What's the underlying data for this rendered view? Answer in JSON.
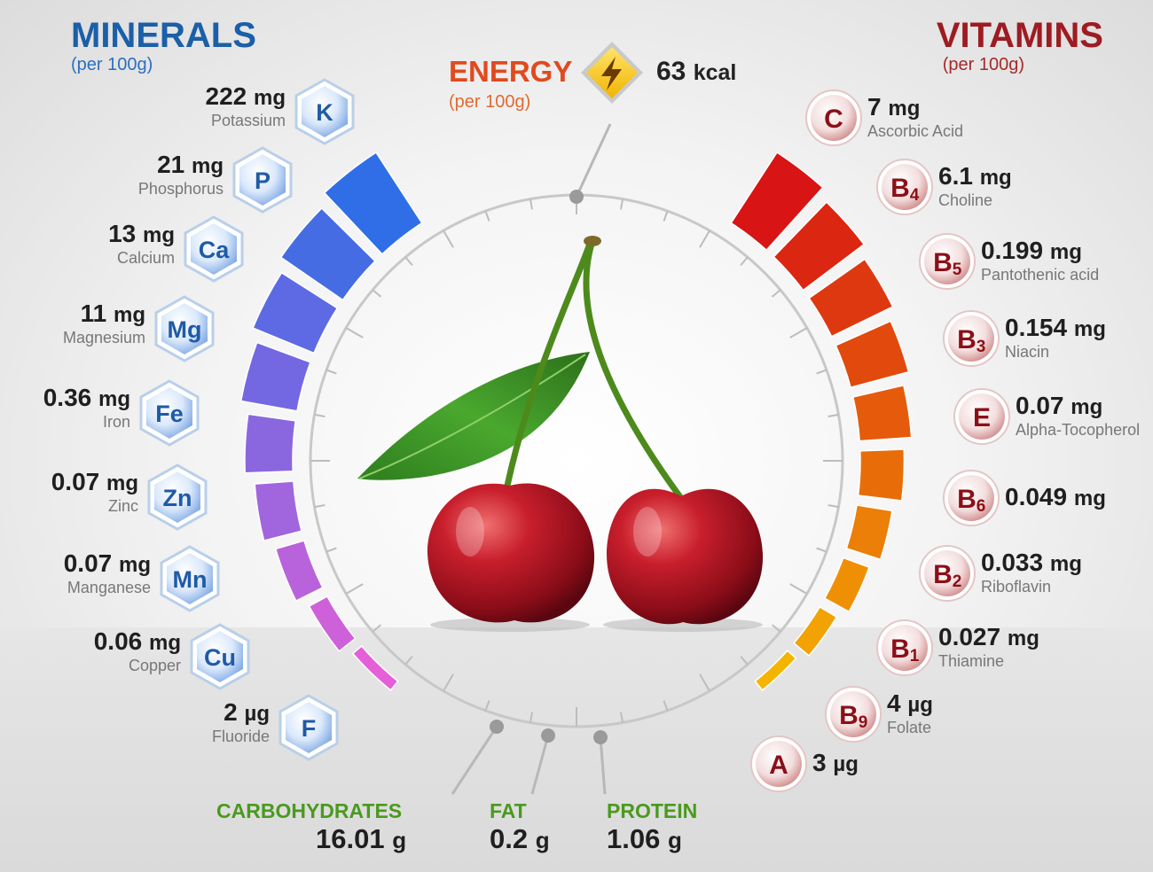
{
  "minerals": {
    "title": "MINERALS",
    "subtitle": "(per 100g)",
    "items": [
      {
        "symbol": "K",
        "amount": "222",
        "unit": "mg",
        "name": "Potassium"
      },
      {
        "symbol": "P",
        "amount": "21",
        "unit": "mg",
        "name": "Phosphorus"
      },
      {
        "symbol": "Ca",
        "amount": "13",
        "unit": "mg",
        "name": "Calcium"
      },
      {
        "symbol": "Mg",
        "amount": "11",
        "unit": "mg",
        "name": "Magnesium"
      },
      {
        "symbol": "Fe",
        "amount": "0.36",
        "unit": "mg",
        "name": "Iron"
      },
      {
        "symbol": "Zn",
        "amount": "0.07",
        "unit": "mg",
        "name": "Zinc"
      },
      {
        "symbol": "Mn",
        "amount": "0.07",
        "unit": "mg",
        "name": "Manganese"
      },
      {
        "symbol": "Cu",
        "amount": "0.06",
        "unit": "mg",
        "name": "Copper"
      },
      {
        "symbol": "F",
        "amount": "2",
        "unit": "µg",
        "name": "Fluoride"
      }
    ]
  },
  "vitamins": {
    "title": "VITAMINS",
    "subtitle": "(per 100g)",
    "items": [
      {
        "symbol": "C",
        "sub": "",
        "amount": "7",
        "unit": "mg",
        "name": "Ascorbic Acid"
      },
      {
        "symbol": "B",
        "sub": "4",
        "amount": "6.1",
        "unit": "mg",
        "name": "Choline"
      },
      {
        "symbol": "B",
        "sub": "5",
        "amount": "0.199",
        "unit": "mg",
        "name": "Pantothenic acid"
      },
      {
        "symbol": "B",
        "sub": "3",
        "amount": "0.154",
        "unit": "mg",
        "name": "Niacin"
      },
      {
        "symbol": "E",
        "sub": "",
        "amount": "0.07",
        "unit": "mg",
        "name": "Alpha-Tocopherol"
      },
      {
        "symbol": "B",
        "sub": "6",
        "amount": "0.049",
        "unit": "mg",
        "name": ""
      },
      {
        "symbol": "B",
        "sub": "2",
        "amount": "0.033",
        "unit": "mg",
        "name": "Riboflavin"
      },
      {
        "symbol": "B",
        "sub": "1",
        "amount": "0.027",
        "unit": "mg",
        "name": "Thiamine"
      },
      {
        "symbol": "B",
        "sub": "9",
        "amount": "4",
        "unit": "µg",
        "name": "Folate"
      },
      {
        "symbol": "A",
        "sub": "",
        "amount": "3",
        "unit": "µg",
        "name": ""
      }
    ]
  },
  "energy": {
    "title": "ENERGY",
    "subtitle": "(per 100g)",
    "value": "63",
    "unit": "kcal",
    "icon": "lightning-icon"
  },
  "macros": [
    {
      "title": "CARBOHYDRATES",
      "amount": "16.01",
      "unit": "g"
    },
    {
      "title": "FAT",
      "amount": "0.2",
      "unit": "g"
    },
    {
      "title": "PROTEIN",
      "amount": "1.06",
      "unit": "g"
    }
  ],
  "colors": {
    "minerals_title": "#1b5fa8",
    "vitamins_title": "#9e1b22",
    "energy_title": "#e04a1f",
    "macro_title": "#4a9a1e",
    "mineral_bar_from": "#2f6ee6",
    "mineral_bar_to": "#e55fd8",
    "vitamin_bar_from": "#d81414",
    "vitamin_bar_to": "#f5b400"
  }
}
